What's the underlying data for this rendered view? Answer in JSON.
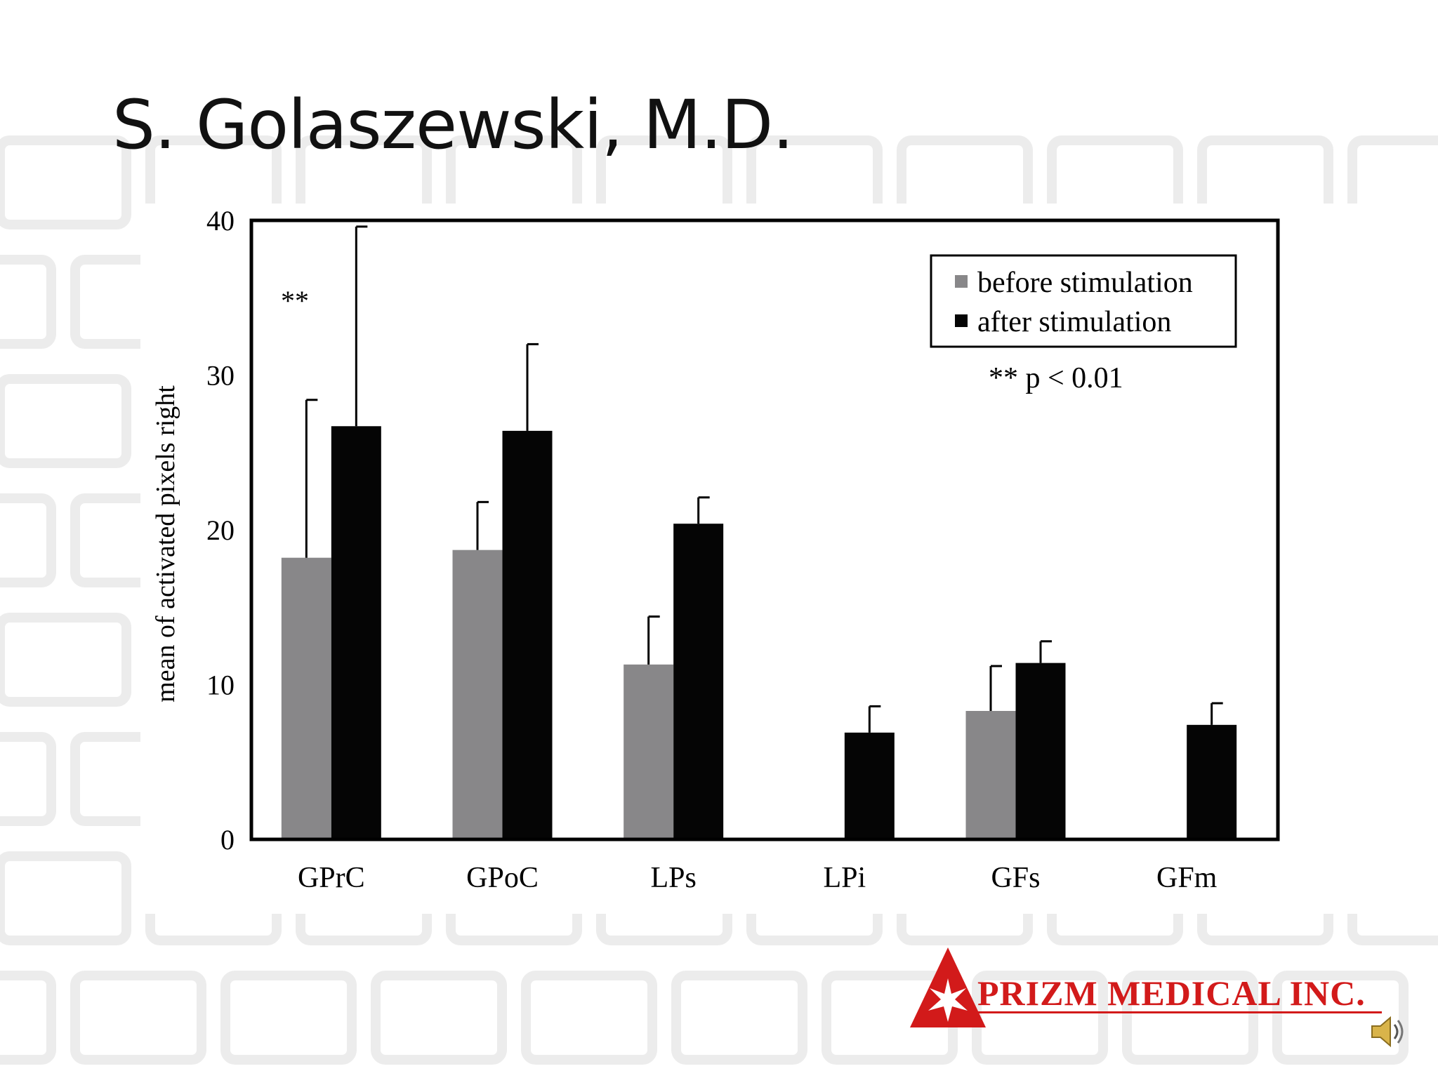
{
  "slide": {
    "title": "S. Golaszewski, M.D."
  },
  "logo": {
    "text": "PRIZM MEDICAL INC."
  },
  "colors": {
    "before": "#888789",
    "after": "#050505",
    "logo_red": "#d21a1a"
  },
  "icons": {
    "audio": "speaker-icon"
  },
  "chart_data": {
    "type": "bar",
    "ylabel": "mean of activated pixels right",
    "xlabel": "",
    "ylim": [
      0,
      40
    ],
    "yticks": [
      0,
      10,
      20,
      30,
      40
    ],
    "categories": [
      "GPrC",
      "GPoC",
      "LPs",
      "LPi",
      "GFs",
      "GFm"
    ],
    "series": [
      {
        "name": "before stimulation",
        "values": [
          18.2,
          18.7,
          11.3,
          null,
          8.3,
          null
        ],
        "errors": [
          10.2,
          3.1,
          3.1,
          null,
          2.9,
          null
        ]
      },
      {
        "name": "after stimulation",
        "values": [
          26.7,
          26.4,
          20.4,
          6.9,
          11.4,
          7.4
        ],
        "errors": [
          12.9,
          5.6,
          1.7,
          1.7,
          1.4,
          1.4
        ]
      }
    ],
    "legend_position": "top-right",
    "annotations": [
      {
        "text": "**",
        "category": "GPrC"
      },
      {
        "text": "** p < 0.01",
        "placement": "below-legend"
      }
    ],
    "grid": false
  }
}
